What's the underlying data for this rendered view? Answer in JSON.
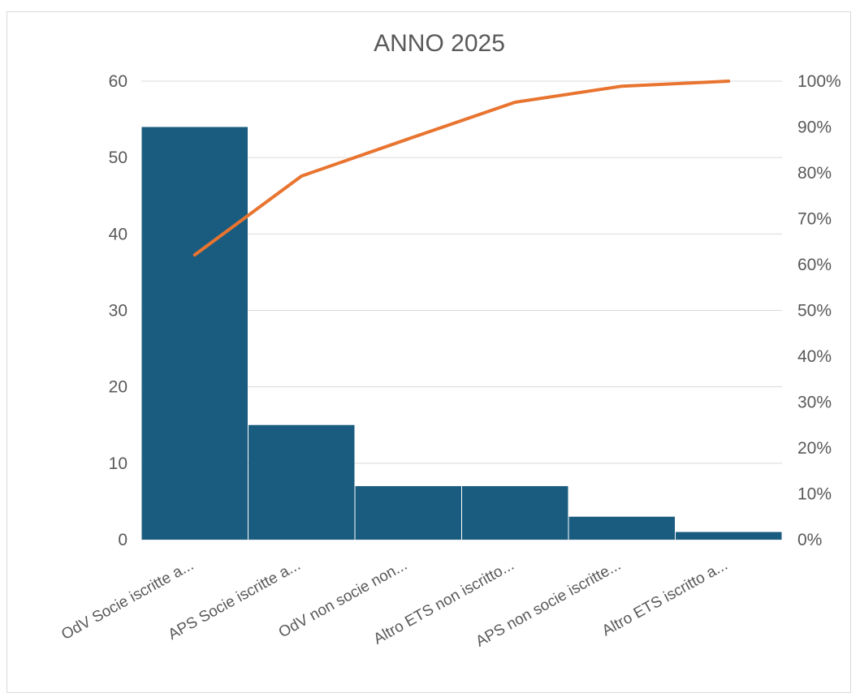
{
  "chart_data": {
    "type": "bar",
    "subtype": "pareto",
    "title": "ANNO 2025",
    "categories": [
      "OdV Socie iscritte a...",
      "APS Socie iscritte a...",
      "OdV non socie non...",
      "Altro ETS non iscritto...",
      "APS non socie iscritte...",
      "Altro ETS iscritto a..."
    ],
    "series": [
      {
        "type": "bar",
        "values": [
          54,
          15,
          7,
          7,
          3,
          1
        ],
        "color": "#1a5c80"
      },
      {
        "type": "line",
        "axis": "secondary",
        "values": [
          62.1,
          79.3,
          87.4,
          95.4,
          98.9,
          100
        ],
        "unit": "%",
        "color": "#e8742f"
      }
    ],
    "y_left": {
      "min": 0,
      "max": 60,
      "ticks": [
        "0",
        "10",
        "20",
        "30",
        "40",
        "50",
        "60"
      ]
    },
    "y_right": {
      "min": 0,
      "max": 100,
      "ticks": [
        "0%",
        "10%",
        "20%",
        "30%",
        "40%",
        "50%",
        "60%",
        "70%",
        "80%",
        "90%",
        "100%"
      ]
    },
    "grid": true,
    "legend": false
  }
}
